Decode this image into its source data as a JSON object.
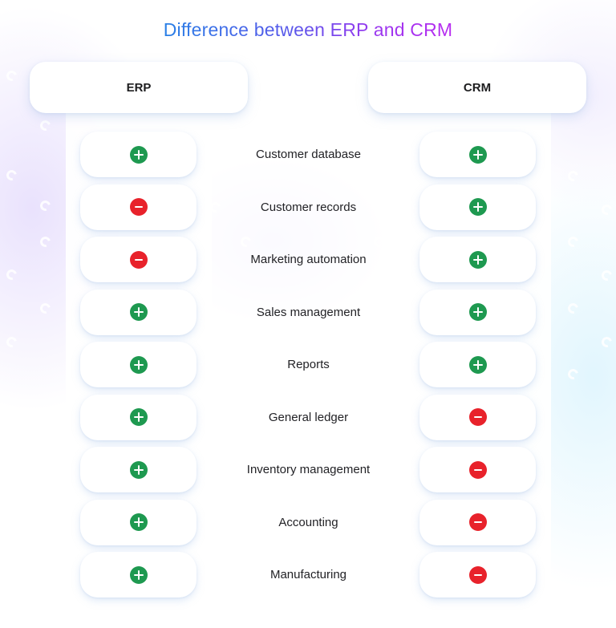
{
  "title": "Difference between ERP and CRM",
  "colors": {
    "title_gradient_start": "#1f87e5",
    "title_gradient_end": "#c229f0",
    "yes": "#1e9950",
    "no": "#e8222b",
    "text": "#222226"
  },
  "columns": {
    "left": "ERP",
    "right": "CRM"
  },
  "legend": {
    "plus": "plus-circle-icon (included)",
    "minus": "minus-circle-icon (not included)"
  },
  "rows": [
    {
      "feature": "Customer database",
      "erp": "plus",
      "crm": "plus"
    },
    {
      "feature": "Customer records",
      "erp": "minus",
      "crm": "plus"
    },
    {
      "feature": "Marketing automation",
      "erp": "minus",
      "crm": "plus"
    },
    {
      "feature": "Sales management",
      "erp": "plus",
      "crm": "plus"
    },
    {
      "feature": "Reports",
      "erp": "plus",
      "crm": "plus"
    },
    {
      "feature": "General ledger",
      "erp": "plus",
      "crm": "minus"
    },
    {
      "feature": "Inventory management",
      "erp": "plus",
      "crm": "minus"
    },
    {
      "feature": "Accounting",
      "erp": "plus",
      "crm": "minus"
    },
    {
      "feature": "Manufacturing",
      "erp": "plus",
      "crm": "minus"
    }
  ]
}
